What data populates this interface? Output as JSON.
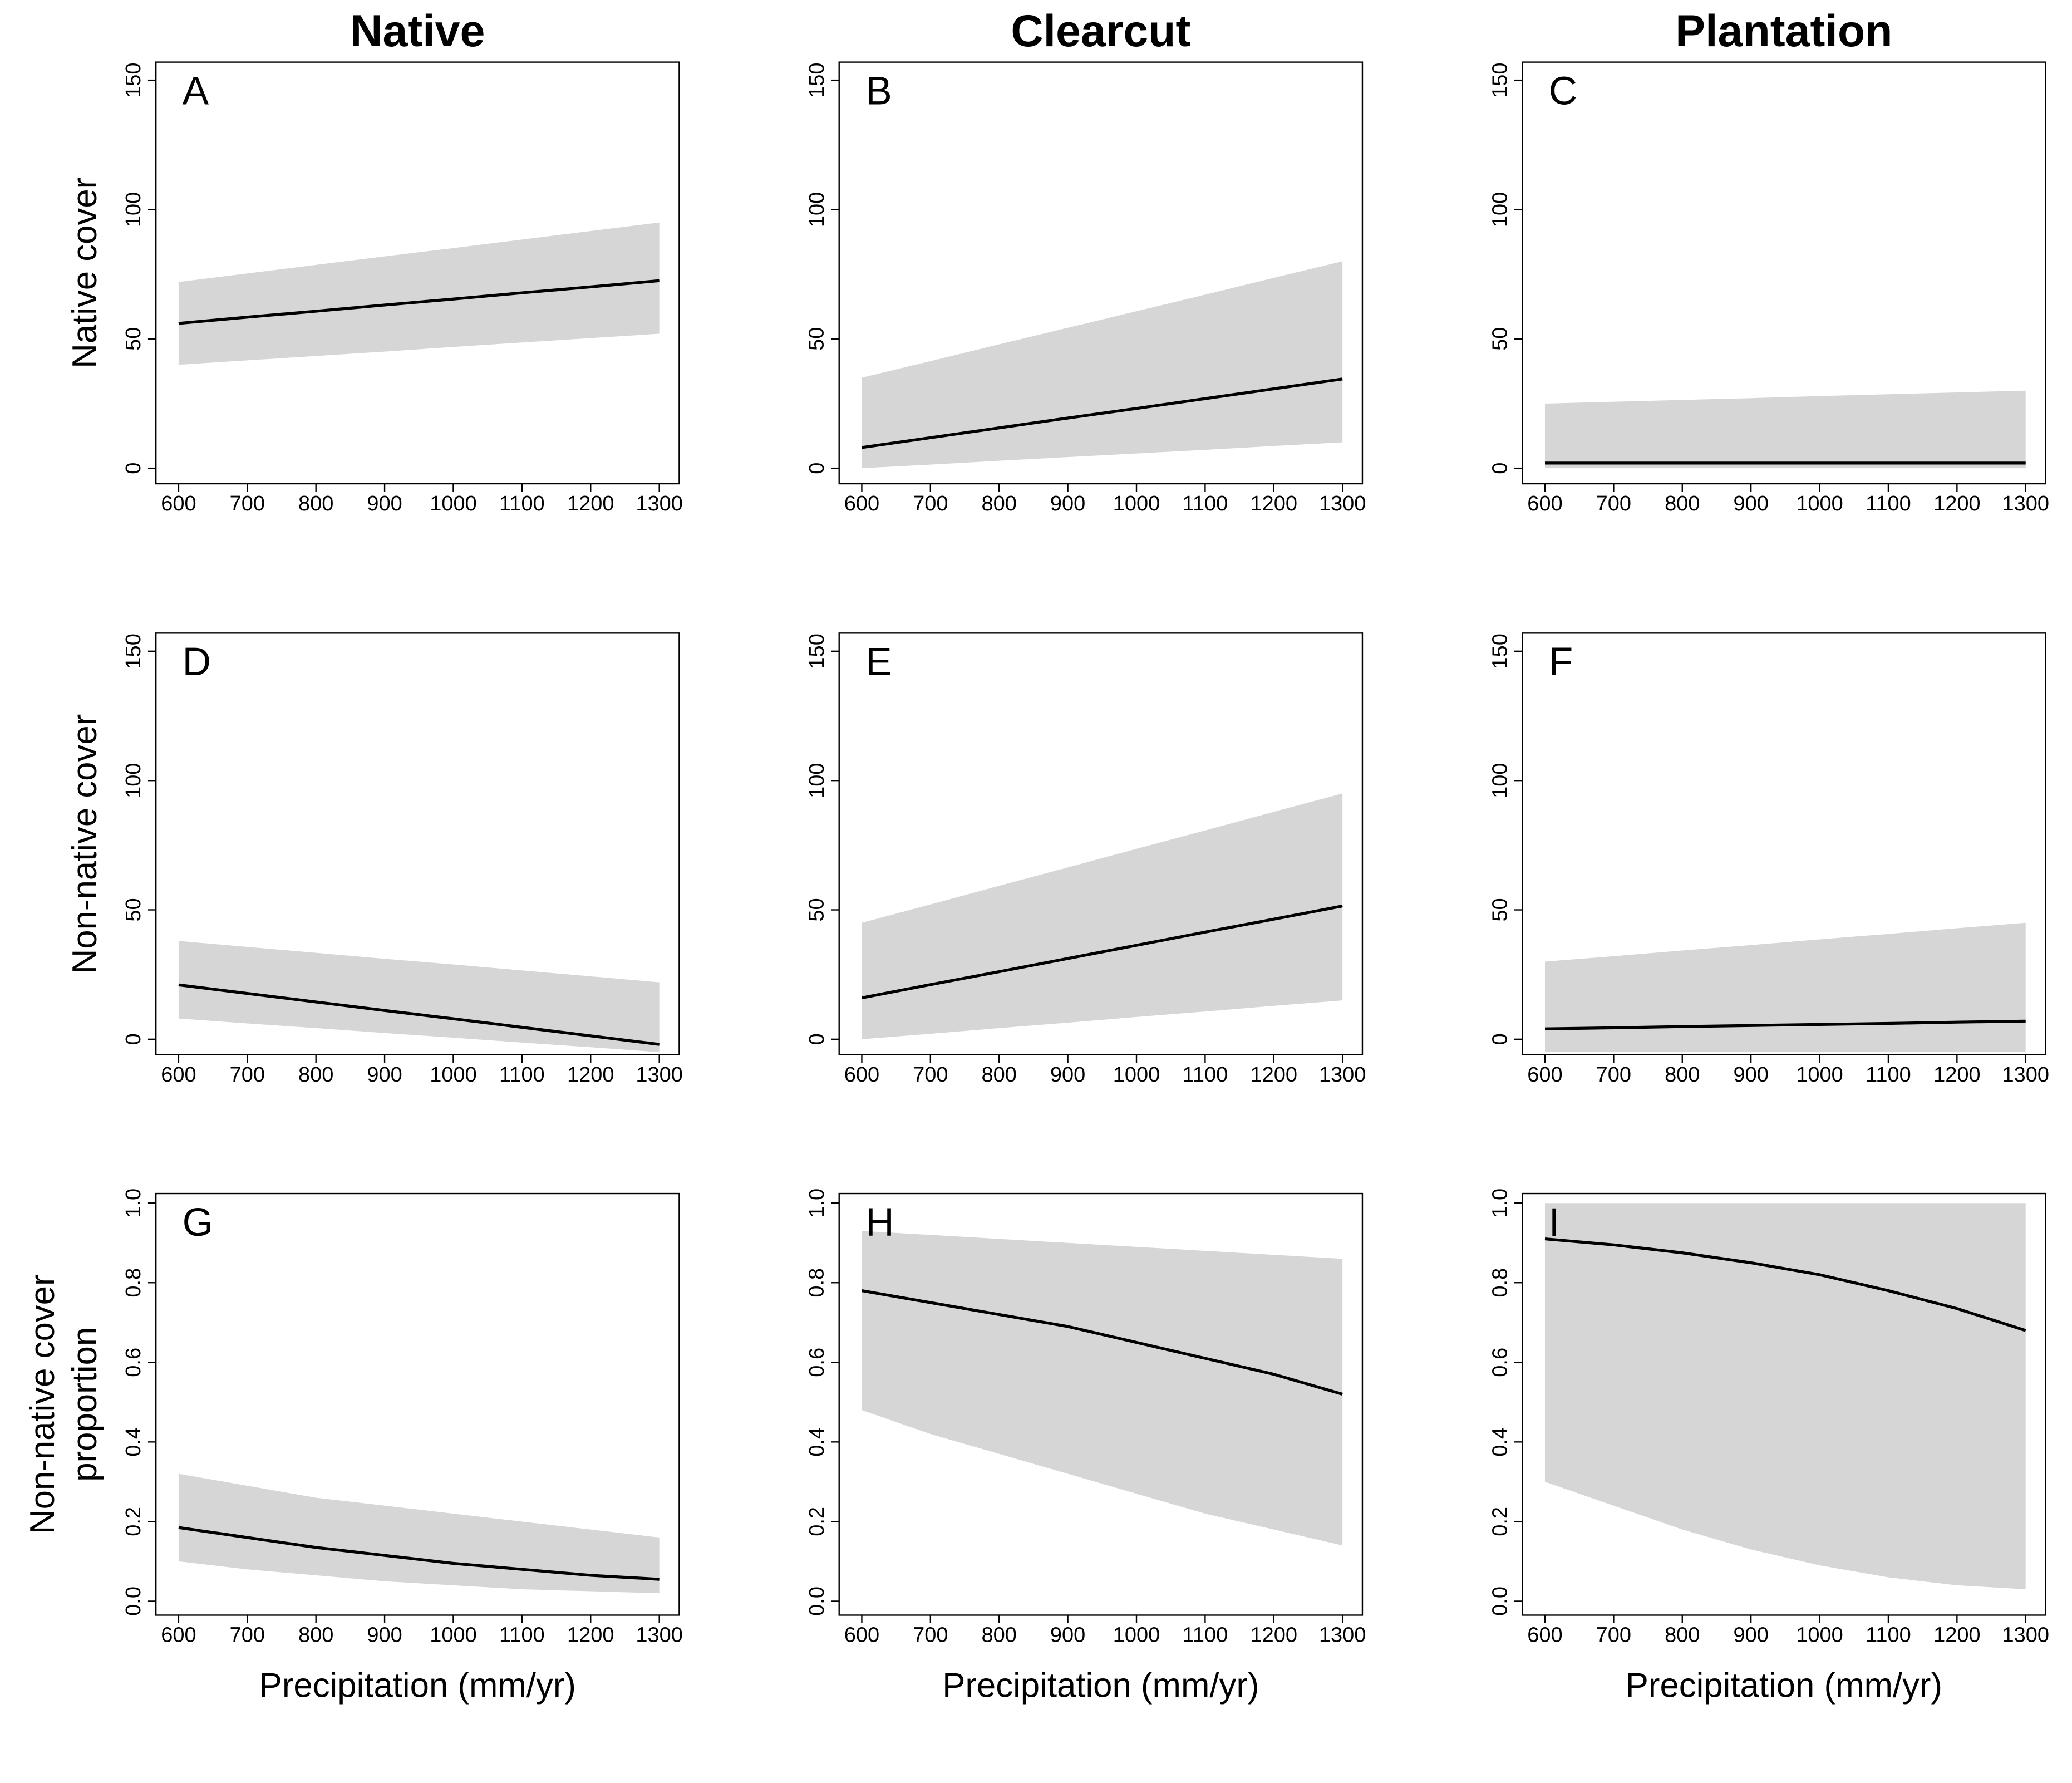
{
  "column_titles": [
    "Native",
    "Clearcut",
    "Plantation"
  ],
  "chart_data": [
    {
      "type": "line",
      "title": "A",
      "ylabel": [
        "Native cover"
      ],
      "x": [
        600,
        700,
        800,
        900,
        1000,
        1100,
        1200,
        1300
      ],
      "series": [
        {
          "color": "#000000",
          "values": [
            56,
            58.4,
            60.7,
            63.1,
            65.4,
            67.8,
            70.1,
            72.5
          ]
        }
      ],
      "band": {
        "color": "#d6d6d6",
        "lower": [
          40,
          41.7,
          43.4,
          45.1,
          46.9,
          48.6,
          50.3,
          52
        ],
        "upper": [
          72,
          75.3,
          78.6,
          81.9,
          85.1,
          88.4,
          91.7,
          95
        ]
      },
      "xlim": [
        567,
        1329
      ],
      "ylim": [
        -6,
        157
      ],
      "xticks": [
        600,
        700,
        800,
        900,
        1000,
        1100,
        1200,
        1300
      ],
      "yticks": [
        0,
        50,
        100,
        150
      ]
    },
    {
      "type": "line",
      "title": "B",
      "x": [
        600,
        700,
        800,
        900,
        1000,
        1100,
        1200,
        1300
      ],
      "series": [
        {
          "color": "#000000",
          "values": [
            8,
            11.8,
            15.6,
            19.4,
            23.1,
            26.9,
            30.7,
            34.5
          ]
        }
      ],
      "band": {
        "color": "#d6d6d6",
        "lower": [
          0,
          1.4,
          2.9,
          4.3,
          5.7,
          7.1,
          8.6,
          10
        ],
        "upper": [
          35,
          41.4,
          47.9,
          54.3,
          60.7,
          67.1,
          73.6,
          80
        ]
      },
      "xlim": [
        567,
        1329
      ],
      "ylim": [
        -6,
        157
      ],
      "xticks": [
        600,
        700,
        800,
        900,
        1000,
        1100,
        1200,
        1300
      ],
      "yticks": [
        0,
        50,
        100,
        150
      ]
    },
    {
      "type": "line",
      "title": "C",
      "x": [
        600,
        700,
        800,
        900,
        1000,
        1100,
        1200,
        1300
      ],
      "series": [
        {
          "color": "#000000",
          "values": [
            2,
            2,
            2,
            2,
            2,
            2,
            2,
            2
          ]
        }
      ],
      "band": {
        "color": "#d6d6d6",
        "lower": [
          0,
          0,
          0,
          0,
          0,
          0,
          0,
          0
        ],
        "upper": [
          25,
          25.7,
          26.4,
          27.1,
          27.9,
          28.6,
          29.3,
          30
        ]
      },
      "xlim": [
        567,
        1329
      ],
      "ylim": [
        -6,
        157
      ],
      "xticks": [
        600,
        700,
        800,
        900,
        1000,
        1100,
        1200,
        1300
      ],
      "yticks": [
        0,
        50,
        100,
        150
      ]
    },
    {
      "type": "line",
      "title": "D",
      "ylabel": [
        "Non-native cover"
      ],
      "x": [
        600,
        700,
        800,
        900,
        1000,
        1100,
        1200,
        1300
      ],
      "series": [
        {
          "color": "#000000",
          "values": [
            21,
            17.7,
            14.4,
            11.1,
            7.9,
            4.6,
            1.3,
            -2
          ]
        }
      ],
      "band": {
        "color": "#d6d6d6",
        "lower": [
          8,
          6.1,
          4.3,
          2.4,
          0.6,
          -1.3,
          -3.1,
          -5
        ],
        "upper": [
          38,
          35.7,
          33.4,
          31.1,
          28.9,
          26.6,
          24.3,
          22
        ]
      },
      "xlim": [
        567,
        1329
      ],
      "ylim": [
        -6,
        157
      ],
      "xticks": [
        600,
        700,
        800,
        900,
        1000,
        1100,
        1200,
        1300
      ],
      "yticks": [
        0,
        50,
        100,
        150
      ]
    },
    {
      "type": "line",
      "title": "E",
      "x": [
        600,
        700,
        800,
        900,
        1000,
        1100,
        1200,
        1300
      ],
      "series": [
        {
          "color": "#000000",
          "values": [
            16,
            21.1,
            26.1,
            31.2,
            36.3,
            41.4,
            46.4,
            51.5
          ]
        }
      ],
      "band": {
        "color": "#d6d6d6",
        "lower": [
          0,
          2.1,
          4.3,
          6.4,
          8.6,
          10.7,
          12.9,
          15
        ],
        "upper": [
          45,
          52.1,
          59.3,
          66.4,
          73.6,
          80.7,
          87.9,
          95
        ]
      },
      "xlim": [
        567,
        1329
      ],
      "ylim": [
        -6,
        157
      ],
      "xticks": [
        600,
        700,
        800,
        900,
        1000,
        1100,
        1200,
        1300
      ],
      "yticks": [
        0,
        50,
        100,
        150
      ]
    },
    {
      "type": "line",
      "title": "F",
      "x": [
        600,
        700,
        800,
        900,
        1000,
        1100,
        1200,
        1300
      ],
      "series": [
        {
          "color": "#000000",
          "values": [
            4,
            4.4,
            4.9,
            5.3,
            5.7,
            6.1,
            6.6,
            7
          ]
        }
      ],
      "band": {
        "color": "#d6d6d6",
        "lower": [
          -5,
          -5,
          -5,
          -5,
          -5,
          -5,
          -5,
          -5
        ],
        "upper": [
          30,
          32.1,
          34.3,
          36.4,
          38.6,
          40.7,
          42.9,
          45
        ]
      },
      "xlim": [
        567,
        1329
      ],
      "ylim": [
        -6,
        157
      ],
      "xticks": [
        600,
        700,
        800,
        900,
        1000,
        1100,
        1200,
        1300
      ],
      "yticks": [
        0,
        50,
        100,
        150
      ]
    },
    {
      "type": "line",
      "title": "G",
      "ylabel": [
        "Non-native cover",
        "proportion"
      ],
      "xlabel": "Precipitation (mm/yr)",
      "x": [
        600,
        700,
        800,
        900,
        1000,
        1100,
        1200,
        1300
      ],
      "series": [
        {
          "color": "#000000",
          "values": [
            0.185,
            0.16,
            0.135,
            0.115,
            0.095,
            0.08,
            0.065,
            0.055
          ]
        }
      ],
      "band": {
        "color": "#d6d6d6",
        "lower": [
          0.1,
          0.08,
          0.065,
          0.05,
          0.04,
          0.03,
          0.025,
          0.02
        ],
        "upper": [
          0.32,
          0.29,
          0.26,
          0.24,
          0.22,
          0.2,
          0.18,
          0.16
        ]
      },
      "xlim": [
        567,
        1329
      ],
      "ylim": [
        -0.035,
        1.024
      ],
      "xticks": [
        600,
        700,
        800,
        900,
        1000,
        1100,
        1200,
        1300
      ],
      "yticks": [
        {
          "value": 0,
          "label": "0.0"
        },
        0.2,
        0.4,
        0.6,
        0.8,
        {
          "value": 1,
          "label": "1.0"
        }
      ]
    },
    {
      "type": "line",
      "title": "H",
      "xlabel": "Precipitation (mm/yr)",
      "x": [
        600,
        700,
        800,
        900,
        1000,
        1100,
        1200,
        1300
      ],
      "series": [
        {
          "color": "#000000",
          "values": [
            0.78,
            0.75,
            0.72,
            0.69,
            0.65,
            0.61,
            0.57,
            0.52
          ]
        }
      ],
      "band": {
        "color": "#d6d6d6",
        "lower": [
          0.48,
          0.42,
          0.37,
          0.32,
          0.27,
          0.22,
          0.18,
          0.14
        ],
        "upper": [
          0.93,
          0.92,
          0.91,
          0.9,
          0.89,
          0.88,
          0.87,
          0.86
        ]
      },
      "xlim": [
        567,
        1329
      ],
      "ylim": [
        -0.035,
        1.024
      ],
      "xticks": [
        600,
        700,
        800,
        900,
        1000,
        1100,
        1200,
        1300
      ],
      "yticks": [
        {
          "value": 0,
          "label": "0.0"
        },
        0.2,
        0.4,
        0.6,
        0.8,
        {
          "value": 1,
          "label": "1.0"
        }
      ]
    },
    {
      "type": "line",
      "title": "I",
      "xlabel": "Precipitation (mm/yr)",
      "x": [
        600,
        700,
        800,
        900,
        1000,
        1100,
        1200,
        1300
      ],
      "series": [
        {
          "color": "#000000",
          "values": [
            0.91,
            0.895,
            0.875,
            0.85,
            0.82,
            0.78,
            0.735,
            0.68
          ]
        }
      ],
      "band": {
        "color": "#d6d6d6",
        "lower": [
          0.3,
          0.24,
          0.18,
          0.13,
          0.09,
          0.06,
          0.04,
          0.03
        ],
        "upper": [
          1,
          1,
          1,
          1,
          1,
          1,
          1,
          1
        ]
      },
      "xlim": [
        567,
        1329
      ],
      "ylim": [
        -0.035,
        1.024
      ],
      "xticks": [
        600,
        700,
        800,
        900,
        1000,
        1100,
        1200,
        1300
      ],
      "yticks": [
        {
          "value": 0,
          "label": "0.0"
        },
        0.2,
        0.4,
        0.6,
        0.8,
        {
          "value": 1,
          "label": "1.0"
        }
      ]
    }
  ]
}
